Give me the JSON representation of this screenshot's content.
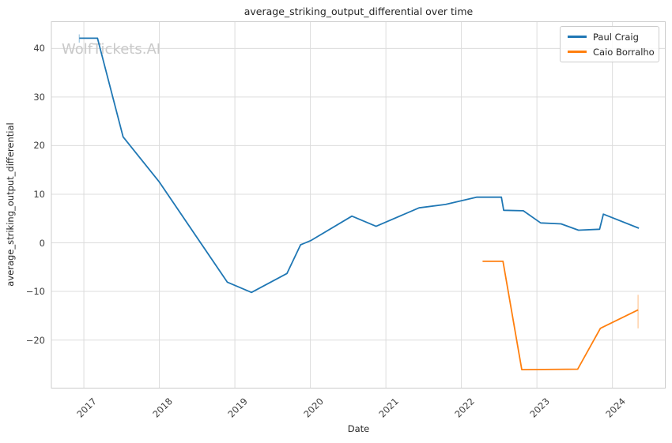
{
  "figure": {
    "title": "average_striking_output_differential over time",
    "xlabel": "Date",
    "ylabel": "average_striking_output_differential",
    "watermark": "WolfTickets.AI"
  },
  "colors": {
    "series_blue": "#1f77b4",
    "series_orange": "#ff7f0e",
    "grid": "#dcdcdc",
    "spine": "#cccccc",
    "text": "#262626",
    "tick_text": "#3d3d3d",
    "watermark": "#c9c9c9",
    "background": "#ffffff"
  },
  "chart_data": {
    "type": "line",
    "title": "average_striking_output_differential over time",
    "xlabel": "Date",
    "ylabel": "average_striking_output_differential",
    "grid": true,
    "legend_position": "upper right",
    "xlim": [
      2016.57,
      2024.7
    ],
    "ylim": [
      -29.9,
      45.5
    ],
    "x_ticks": [
      2017,
      2018,
      2019,
      2020,
      2021,
      2022,
      2023,
      2024
    ],
    "y_ticks": [
      -20,
      -10,
      0,
      10,
      20,
      30,
      40
    ],
    "series": [
      {
        "name": "Paul Craig",
        "color": "#1f77b4",
        "x": [
          2016.94,
          2017.18,
          2017.52,
          2018.0,
          2018.9,
          2019.22,
          2019.69,
          2019.87,
          2020.01,
          2020.55,
          2020.87,
          2021.44,
          2021.79,
          2022.2,
          2022.53,
          2022.56,
          2022.82,
          2023.05,
          2023.32,
          2023.55,
          2023.83,
          2023.88,
          2024.35
        ],
        "y": [
          42.1,
          42.1,
          21.8,
          12.5,
          -8.1,
          -10.2,
          -6.3,
          -0.4,
          0.5,
          5.5,
          3.4,
          7.2,
          7.9,
          9.4,
          9.4,
          6.7,
          6.6,
          4.1,
          3.9,
          2.6,
          2.8,
          5.9,
          3.0
        ]
      },
      {
        "name": "Caio Borralho",
        "color": "#ff7f0e",
        "x": [
          2022.28,
          2022.55,
          2022.8,
          2023.54,
          2023.84,
          2024.34
        ],
        "y": [
          -3.8,
          -3.8,
          -26.1,
          -26.0,
          -17.6,
          -13.8
        ]
      }
    ],
    "error_bars": [
      {
        "series": "Paul Craig",
        "x": 2016.94,
        "y_low": 41.2,
        "y_high": 42.9
      },
      {
        "series": "Caio Borralho",
        "x": 2024.34,
        "y_low": -17.6,
        "y_high": -10.7
      }
    ]
  }
}
